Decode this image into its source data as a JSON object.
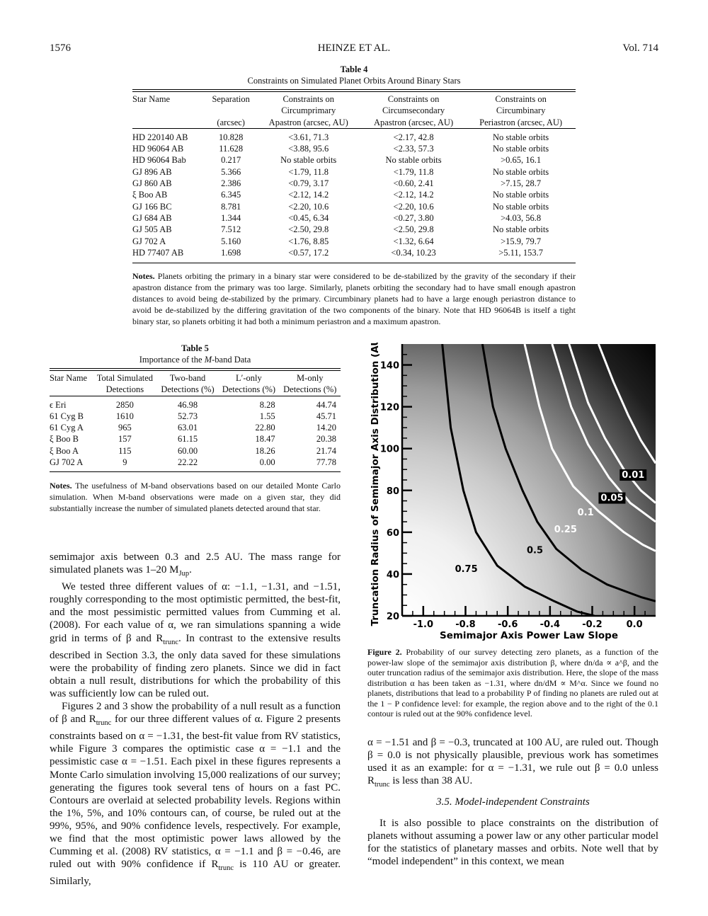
{
  "header": {
    "page_number": "1576",
    "authors": "HEINZE ET AL.",
    "volume": "Vol. 714"
  },
  "table4": {
    "label": "Table 4",
    "title": "Constraints on Simulated Planet Orbits Around Binary Stars",
    "columns": [
      [
        "Star Name",
        "",
        ""
      ],
      [
        "Separation",
        "",
        "(arcsec)"
      ],
      [
        "Constraints on",
        "Circumprimary",
        "Apastron (arcsec, AU)"
      ],
      [
        "Constraints on",
        "Circumsecondary",
        "Apastron (arcsec, AU)"
      ],
      [
        "Constraints on",
        "Circumbinary",
        "Periastron (arcsec, AU)"
      ]
    ],
    "rows": [
      [
        "HD 220140 AB",
        "10.828",
        "<3.61, 71.3",
        "<2.17, 42.8",
        "No stable orbits"
      ],
      [
        "HD 96064 AB",
        "11.628",
        "<3.88, 95.6",
        "<2.33, 57.3",
        "No stable orbits"
      ],
      [
        "HD 96064 Bab",
        "0.217",
        "No stable orbits",
        "No stable orbits",
        ">0.65, 16.1"
      ],
      [
        "GJ 896 AB",
        "5.366",
        "<1.79, 11.8",
        "<1.79, 11.8",
        "No stable orbits"
      ],
      [
        "GJ 860 AB",
        "2.386",
        "<0.79, 3.17",
        "<0.60, 2.41",
        ">7.15, 28.7"
      ],
      [
        "ξ Boo AB",
        "6.345",
        "<2.12, 14.2",
        "<2.12, 14.2",
        "No stable orbits"
      ],
      [
        "GJ 166 BC",
        "8.781",
        "<2.20, 10.6",
        "<2.20, 10.6",
        "No stable orbits"
      ],
      [
        "GJ 684 AB",
        "1.344",
        "<0.45, 6.34",
        "<0.27, 3.80",
        ">4.03, 56.8"
      ],
      [
        "GJ 505 AB",
        "7.512",
        "<2.50, 29.8",
        "<2.50, 29.8",
        "No stable orbits"
      ],
      [
        "GJ 702 A",
        "5.160",
        "<1.76, 8.85",
        "<1.32, 6.64",
        ">15.9, 79.7"
      ],
      [
        "HD 77407 AB",
        "1.698",
        "<0.57, 17.2",
        "<0.34, 10.23",
        ">5.11, 153.7"
      ]
    ],
    "notes_label": "Notes.",
    "notes": "Planets orbiting the primary in a binary star were considered to be de-stabilized by the gravity of the secondary if their apastron distance from the primary was too large. Similarly, planets orbiting the secondary had to have small enough apastron distances to avoid being de-stabilized by the primary. Circumbinary planets had to have a large enough periastron distance to avoid be de-stabilized by the differing gravitation of the two components of the binary. Note that HD 96064B is itself a tight binary star, so planets orbiting it had both a minimum periastron and a maximum apastron."
  },
  "table5": {
    "label": "Table 5",
    "title_pre": "Importance of the ",
    "title_em": "M",
    "title_post": "-band Data",
    "columns": [
      [
        "Star Name",
        ""
      ],
      [
        "Total Simulated",
        "Detections"
      ],
      [
        "Two-band",
        "Detections (%)"
      ],
      [
        "L′-only",
        "Detections (%)"
      ],
      [
        "M-only",
        "Detections (%)"
      ]
    ],
    "rows": [
      [
        "ϵ Eri",
        "2850",
        "46.98",
        "8.28",
        "44.74"
      ],
      [
        "61 Cyg B",
        "1610",
        "52.73",
        "1.55",
        "45.71"
      ],
      [
        "61 Cyg A",
        "965",
        "63.01",
        "22.80",
        "14.20"
      ],
      [
        "ξ Boo B",
        "157",
        "61.15",
        "18.47",
        "20.38"
      ],
      [
        "ξ Boo A",
        "115",
        "60.00",
        "18.26",
        "21.74"
      ],
      [
        "GJ 702 A",
        "9",
        "22.22",
        "0.00",
        "77.78"
      ]
    ],
    "notes_label": "Notes.",
    "notes": "The usefulness of M-band observations based on our detailed Monte Carlo simulation. When M-band observations were made on a given star, they did substantially increase the number of simulated planets detected around that star."
  },
  "left_body": {
    "p1": "semimajor axis between 0.3 and 2.5 AU. The mass range for simulated planets was 1–20 M",
    "p1_sub": "Jup",
    "p1_end": ".",
    "p2": "We tested three different values of α: −1.1, −1.31, and −1.51, roughly corresponding to the most optimistic permitted, the best-fit, and the most pessimistic permitted values from Cumming et al. (2008). For each value of α, we ran simulations spanning a wide grid in terms of β and R",
    "p2_sub": "trunc",
    "p2_mid": ". In contrast to the extensive results described in Section 3.3, the only data saved for these simulations were the probability of finding zero planets. Since we did in fact obtain a null result, distributions for which the probability of this was sufficiently low can be ruled out.",
    "p3": "Figures 2 and 3 show the probability of a null result as a function of β and R",
    "p3_sub": "trunc",
    "p3_mid": " for our three different values of α. Figure 2 presents constraints based on α = −1.31, the best-fit value from RV statistics, while Figure 3 compares the optimistic case α = −1.1 and the pessimistic case α = −1.51. Each pixel in these figures represents a Monte Carlo simulation involving 15,000 realizations of our survey; generating the figures took several tens of hours on a fast PC. Contours are overlaid at selected probability levels. Regions within the 1%, 5%, and 10% contours can, of course, be ruled out at the 99%, 95%, and 90% confidence levels, respectively. For example, we find that the most optimistic power laws allowed by the Cumming et al. (2008) RV statistics, α = −1.1 and β = −0.46, are ruled out with 90% confidence if R",
    "p3_sub2": "trunc",
    "p3_end": " is 110 AU or greater. Similarly,"
  },
  "figure2": {
    "ylabel": "Truncation Radius of Semimajor Axis Distribution (AU)",
    "xlabel": "Semimajor Axis Power Law Slope",
    "caption_label": "Figure 2.",
    "caption": "Probability of our survey detecting zero planets, as a function of the power-law slope of the semimajor axis distribution β, where dn/da ∝ a^β, and the outer truncation radius of the semimajor axis distribution. Here, the slope of the mass distribution α has been taken as −1.31, where dn/dM ∝ M^α. Since we found no planets, distributions that lead to a probability P of finding no planets are ruled out at the 1 − P confidence level: for example, the region above and to the right of the 0.1 contour is ruled out at the 90% confidence level."
  },
  "chart_data": {
    "type": "heatmap",
    "xlabel": "Semimajor Axis Power Law Slope",
    "ylabel": "Truncation Radius of Semimajor Axis Distribution (AU)",
    "xlim": [
      -1.1,
      0.1
    ],
    "ylim": [
      20,
      150
    ],
    "xticks": [
      -1.0,
      -0.8,
      -0.6,
      -0.4,
      -0.2,
      0.0
    ],
    "xtick_labels": [
      "-1.0",
      "-0.8",
      "-0.6",
      "-0.4",
      "-0.2",
      "0.0"
    ],
    "yticks": [
      20,
      40,
      60,
      80,
      100,
      120,
      140
    ],
    "ytick_labels": [
      "20",
      "40",
      "60",
      "80",
      "100",
      "120",
      "140"
    ],
    "colorscale": "white = high probability of zero detections, black = low",
    "contours": [
      {
        "level": "0.75",
        "color": "#000000",
        "points": [
          [
            -0.91,
            150
          ],
          [
            -0.87,
            110
          ],
          [
            -0.81,
            80
          ],
          [
            -0.75,
            60
          ],
          [
            -0.65,
            44
          ],
          [
            -0.52,
            34
          ],
          [
            -0.38,
            27
          ],
          [
            -0.27,
            22
          ],
          [
            -0.19,
            20
          ]
        ]
      },
      {
        "level": "0.5",
        "color": "#000000",
        "points": [
          [
            -0.72,
            150
          ],
          [
            -0.67,
            120
          ],
          [
            -0.61,
            100
          ],
          [
            -0.53,
            80
          ],
          [
            -0.46,
            65
          ],
          [
            -0.37,
            52
          ],
          [
            -0.25,
            42
          ],
          [
            -0.13,
            35
          ],
          [
            0.03,
            29
          ],
          [
            0.1,
            27
          ]
        ]
      },
      {
        "level": "0.25",
        "color": "#ffffff",
        "points": [
          [
            -0.52,
            150
          ],
          [
            -0.45,
            120
          ],
          [
            -0.39,
            100
          ],
          [
            -0.29,
            82
          ],
          [
            -0.17,
            70
          ],
          [
            -0.05,
            60
          ],
          [
            0.04,
            54
          ],
          [
            0.1,
            51
          ]
        ]
      },
      {
        "level": "0.1",
        "color": "#ffffff",
        "points": [
          [
            -0.39,
            150
          ],
          [
            -0.3,
            120
          ],
          [
            -0.22,
            102
          ],
          [
            -0.12,
            86
          ],
          [
            -0.02,
            74
          ],
          [
            0.06,
            68
          ],
          [
            0.1,
            65
          ]
        ]
      },
      {
        "level": "0.05",
        "color": "#ffffff",
        "points": [
          [
            -0.31,
            150
          ],
          [
            -0.22,
            122
          ],
          [
            -0.14,
            105
          ],
          [
            -0.05,
            90
          ],
          [
            0.03,
            80
          ],
          [
            0.1,
            74
          ]
        ]
      },
      {
        "level": "0.01",
        "color": "#ffffff",
        "points": [
          [
            -0.17,
            150
          ],
          [
            -0.1,
            132
          ],
          [
            -0.03,
            116
          ],
          [
            0.03,
            104
          ],
          [
            0.1,
            93
          ]
        ]
      }
    ],
    "contour_labels": [
      {
        "text": "0.75",
        "x": -0.85,
        "y": 41
      },
      {
        "text": "0.5",
        "x": -0.51,
        "y": 50
      },
      {
        "text": "0.25",
        "x": -0.38,
        "y": 60
      },
      {
        "text": "0.1",
        "x": -0.27,
        "y": 68
      },
      {
        "text": "0.05",
        "x": -0.16,
        "y": 75
      },
      {
        "text": "0.01",
        "x": -0.06,
        "y": 86
      }
    ]
  },
  "right_body": {
    "p1": "α = −1.51 and β = −0.3, truncated at 100 AU, are ruled out. Though β = 0.0 is not physically plausible, previous work has sometimes used it as an example: for α = −1.31, we rule out β = 0.0 unless R",
    "p1_sub": "trunc",
    "p1_end": " is less than 38 AU.",
    "section": "3.5. Model-independent Constraints",
    "p2": "It is also possible to place constraints on the distribution of planets without assuming a power law or any other particular model for the statistics of planetary masses and orbits. Note well that by “model independent” in this context, we mean"
  }
}
